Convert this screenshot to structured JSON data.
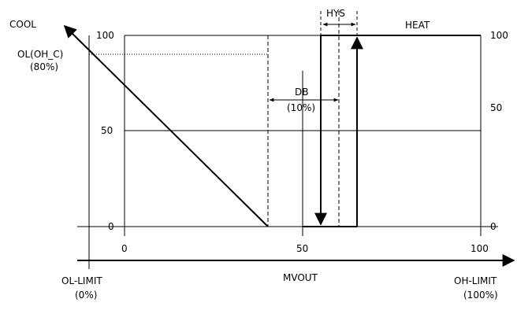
{
  "labels": {
    "cool": "COOL",
    "heat": "HEAT",
    "hys": "HYS",
    "db_name": "DB",
    "db_value": "(10%)",
    "ol_name": "OL(OH_C)",
    "ol_value": "(80%)",
    "xaxis_title": "MVOUT",
    "ol_limit": "OL-LIMIT",
    "ol_limit_pct": "(0%)",
    "oh_limit": "OH-LIMIT",
    "oh_limit_pct": "(100%)"
  },
  "left_ticks": [
    "100",
    "50",
    "0"
  ],
  "right_ticks": [
    "100",
    "50",
    "0"
  ],
  "x_ticks": [
    "0",
    "50",
    "100"
  ],
  "diagram": {
    "x_range": [
      0,
      100
    ],
    "y_range": [
      0,
      100
    ],
    "cool_line": {
      "from": [
        -5,
        100
      ],
      "to": [
        40,
        0
      ]
    },
    "ol_value": 80,
    "db_range": [
      40,
      60
    ],
    "hys_range": [
      55,
      65
    ],
    "heat_off_at": 55,
    "heat_on_at": 65,
    "heat_start": 50,
    "y_grid": [
      100,
      50,
      0
    ]
  }
}
